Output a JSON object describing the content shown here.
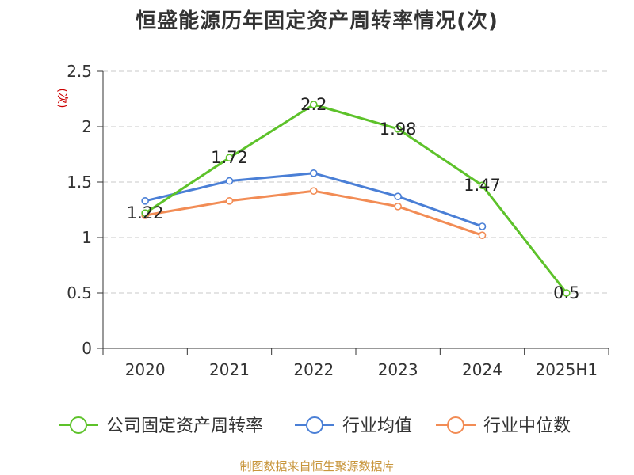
{
  "title": "恒盛能源历年固定资产周转率情况(次)",
  "source": "制图数据来自恒生聚源数据库",
  "chart_data": {
    "type": "line",
    "title": "恒盛能源历年固定资产周转率情况(次)",
    "ylabel": "(次)",
    "xlabel": "",
    "categories": [
      "2020",
      "2021",
      "2022",
      "2023",
      "2024",
      "2025H1"
    ],
    "ylim": [
      0,
      2.5
    ],
    "yticks": [
      "0",
      "0.5",
      "1",
      "1.5",
      "2",
      "2.5"
    ],
    "grid": true,
    "legend_position": "bottom",
    "series": [
      {
        "name": "公司固定资产周转率",
        "color": "#5dc22a",
        "values": [
          1.22,
          1.72,
          2.2,
          1.98,
          1.47,
          0.5
        ],
        "labels": [
          "1.22",
          "1.72",
          "2.2",
          "1.98",
          "1.47",
          "0.5"
        ]
      },
      {
        "name": "行业均值",
        "color": "#4a7fd6",
        "values": [
          1.33,
          1.51,
          1.58,
          1.37,
          1.1,
          null
        ]
      },
      {
        "name": "行业中位数",
        "color": "#f28c55",
        "values": [
          1.2,
          1.33,
          1.42,
          1.28,
          1.02,
          null
        ]
      }
    ],
    "ylabel_color": "#cc0000"
  }
}
